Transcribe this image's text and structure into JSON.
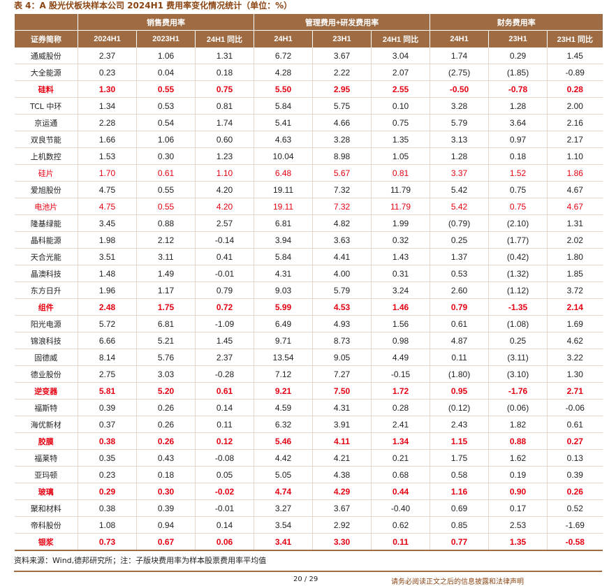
{
  "title": "表 4：A 股光伏板块样本公司 2024H1 费用率变化情况统计（单位：%）",
  "table": {
    "groups": [
      "销售费用率",
      "管理费用+研发费用率",
      "财务费用率"
    ],
    "columns": [
      "证券简称",
      "2024H1",
      "2023H1",
      "24H1 同比",
      "24H1",
      "23H1",
      "24H1 同比",
      "24H1",
      "23H1",
      "23H1 同比"
    ],
    "rows": [
      {
        "cells": [
          "通威股份",
          "2.37",
          "1.06",
          "1.31",
          "6.72",
          "3.67",
          "3.04",
          "1.74",
          "0.29",
          "1.45"
        ],
        "highlight": false,
        "bold": false
      },
      {
        "cells": [
          "大全能源",
          "0.23",
          "0.04",
          "0.18",
          "4.28",
          "2.22",
          "2.07",
          "(2.75)",
          "(1.85)",
          "-0.89"
        ],
        "highlight": false,
        "bold": false
      },
      {
        "cells": [
          "硅料",
          "1.30",
          "0.55",
          "0.75",
          "5.50",
          "2.95",
          "2.55",
          "-0.50",
          "-0.78",
          "0.28"
        ],
        "highlight": true,
        "bold": true
      },
      {
        "cells": [
          "TCL 中环",
          "1.34",
          "0.53",
          "0.81",
          "5.84",
          "5.75",
          "0.10",
          "3.28",
          "1.28",
          "2.00"
        ],
        "highlight": false,
        "bold": false
      },
      {
        "cells": [
          "京运通",
          "2.28",
          "0.54",
          "1.74",
          "5.41",
          "4.66",
          "0.75",
          "5.79",
          "3.64",
          "2.16"
        ],
        "highlight": false,
        "bold": false
      },
      {
        "cells": [
          "双良节能",
          "1.66",
          "1.06",
          "0.60",
          "4.63",
          "3.28",
          "1.35",
          "3.13",
          "0.97",
          "2.17"
        ],
        "highlight": false,
        "bold": false
      },
      {
        "cells": [
          "上机数控",
          "1.53",
          "0.30",
          "1.23",
          "10.04",
          "8.98",
          "1.05",
          "1.28",
          "0.18",
          "1.10"
        ],
        "highlight": false,
        "bold": false
      },
      {
        "cells": [
          "硅片",
          "1.70",
          "0.61",
          "1.10",
          "6.48",
          "5.67",
          "0.81",
          "3.37",
          "1.52",
          "1.86"
        ],
        "highlight": true,
        "bold": false
      },
      {
        "cells": [
          "爱旭股份",
          "4.75",
          "0.55",
          "4.20",
          "19.11",
          "7.32",
          "11.79",
          "5.42",
          "0.75",
          "4.67"
        ],
        "highlight": false,
        "bold": false
      },
      {
        "cells": [
          "电池片",
          "4.75",
          "0.55",
          "4.20",
          "19.11",
          "7.32",
          "11.79",
          "5.42",
          "0.75",
          "4.67"
        ],
        "highlight": true,
        "bold": false
      },
      {
        "cells": [
          "隆基绿能",
          "3.45",
          "0.88",
          "2.57",
          "6.81",
          "4.82",
          "1.99",
          "(0.79)",
          "(2.10)",
          "1.31"
        ],
        "highlight": false,
        "bold": false
      },
      {
        "cells": [
          "晶科能源",
          "1.98",
          "2.12",
          "-0.14",
          "3.94",
          "3.63",
          "0.32",
          "0.25",
          "(1.77)",
          "2.02"
        ],
        "highlight": false,
        "bold": false
      },
      {
        "cells": [
          "天合光能",
          "3.51",
          "3.11",
          "0.41",
          "5.84",
          "4.41",
          "1.43",
          "1.37",
          "(0.42)",
          "1.80"
        ],
        "highlight": false,
        "bold": false
      },
      {
        "cells": [
          "晶澳科技",
          "1.48",
          "1.49",
          "-0.01",
          "4.31",
          "4.00",
          "0.31",
          "0.53",
          "(1.32)",
          "1.85"
        ],
        "highlight": false,
        "bold": false
      },
      {
        "cells": [
          "东方日升",
          "1.96",
          "1.17",
          "0.79",
          "9.03",
          "5.79",
          "3.24",
          "2.60",
          "(1.12)",
          "3.72"
        ],
        "highlight": false,
        "bold": false
      },
      {
        "cells": [
          "组件",
          "2.48",
          "1.75",
          "0.72",
          "5.99",
          "4.53",
          "1.46",
          "0.79",
          "-1.35",
          "2.14"
        ],
        "highlight": true,
        "bold": true
      },
      {
        "cells": [
          "阳光电源",
          "5.72",
          "6.81",
          "-1.09",
          "6.49",
          "4.93",
          "1.56",
          "0.61",
          "(1.08)",
          "1.69"
        ],
        "highlight": false,
        "bold": false
      },
      {
        "cells": [
          "锦浪科技",
          "6.66",
          "5.21",
          "1.45",
          "9.71",
          "8.73",
          "0.98",
          "4.87",
          "0.25",
          "4.62"
        ],
        "highlight": false,
        "bold": false
      },
      {
        "cells": [
          "固德威",
          "8.14",
          "5.76",
          "2.37",
          "13.54",
          "9.05",
          "4.49",
          "0.11",
          "(3.11)",
          "3.22"
        ],
        "highlight": false,
        "bold": false
      },
      {
        "cells": [
          "德业股份",
          "2.75",
          "3.03",
          "-0.28",
          "7.12",
          "7.27",
          "-0.15",
          "(1.80)",
          "(3.10)",
          "1.30"
        ],
        "highlight": false,
        "bold": false
      },
      {
        "cells": [
          "逆变器",
          "5.81",
          "5.20",
          "0.61",
          "9.21",
          "7.50",
          "1.72",
          "0.95",
          "-1.76",
          "2.71"
        ],
        "highlight": true,
        "bold": true
      },
      {
        "cells": [
          "福斯特",
          "0.39",
          "0.26",
          "0.14",
          "4.59",
          "4.31",
          "0.28",
          "(0.12)",
          "(0.06)",
          "-0.06"
        ],
        "highlight": false,
        "bold": false
      },
      {
        "cells": [
          "海优新材",
          "0.37",
          "0.26",
          "0.11",
          "6.32",
          "3.91",
          "2.41",
          "2.43",
          "1.82",
          "0.61"
        ],
        "highlight": false,
        "bold": false
      },
      {
        "cells": [
          "胶膜",
          "0.38",
          "0.26",
          "0.12",
          "5.46",
          "4.11",
          "1.34",
          "1.15",
          "0.88",
          "0.27"
        ],
        "highlight": true,
        "bold": true
      },
      {
        "cells": [
          "福莱特",
          "0.35",
          "0.43",
          "-0.08",
          "4.42",
          "4.21",
          "0.21",
          "1.75",
          "1.62",
          "0.13"
        ],
        "highlight": false,
        "bold": false
      },
      {
        "cells": [
          "亚玛顿",
          "0.23",
          "0.18",
          "0.05",
          "5.05",
          "4.38",
          "0.68",
          "0.58",
          "0.19",
          "0.39"
        ],
        "highlight": false,
        "bold": false
      },
      {
        "cells": [
          "玻璃",
          "0.29",
          "0.30",
          "-0.02",
          "4.74",
          "4.29",
          "0.44",
          "1.16",
          "0.90",
          "0.26"
        ],
        "highlight": true,
        "bold": true
      },
      {
        "cells": [
          "聚和材料",
          "0.38",
          "0.39",
          "-0.01",
          "3.27",
          "3.67",
          "-0.40",
          "0.69",
          "0.17",
          "0.52"
        ],
        "highlight": false,
        "bold": false
      },
      {
        "cells": [
          "帝科股份",
          "1.08",
          "0.94",
          "0.14",
          "3.54",
          "2.92",
          "0.62",
          "0.85",
          "2.53",
          "-1.69"
        ],
        "highlight": false,
        "bold": false
      },
      {
        "cells": [
          "银浆",
          "0.73",
          "0.67",
          "0.06",
          "3.41",
          "3.30",
          "0.11",
          "0.77",
          "1.35",
          "-0.58"
        ],
        "highlight": true,
        "bold": true
      }
    ]
  },
  "source": "资料来源：Wind,德邦研究所；注：子版块费用率为样本股票费用率平均值",
  "page": "20 / 29",
  "disclaimer": "请务必阅读正文之后的信息披露和法律声明"
}
